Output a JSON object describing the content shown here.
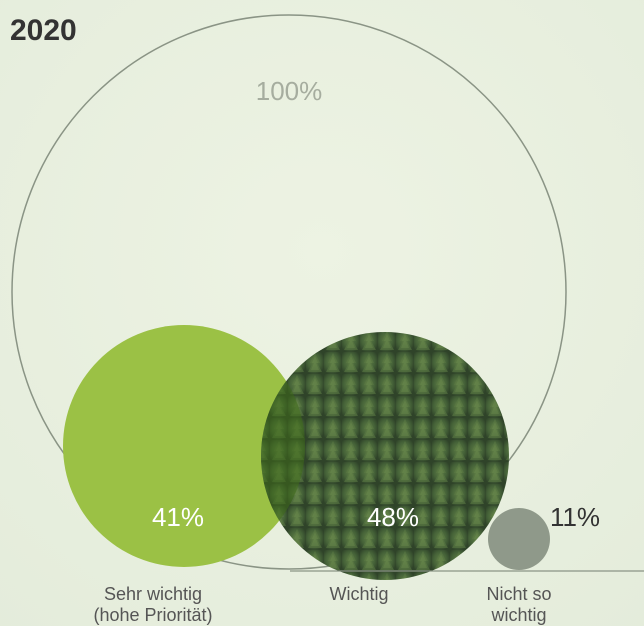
{
  "title": "2020",
  "colors": {
    "background": "#e9f0e0",
    "outline": "#8a9485",
    "total_label": "#a6ad9f",
    "light_green": "#9bc145",
    "dark_green": "#3f5a37",
    "grey": "#8f998a",
    "text_dark": "#333333",
    "text_white": "#ffffff"
  },
  "chart_data": {
    "type": "bubble",
    "total": {
      "value": 100,
      "label": "100%"
    },
    "items": [
      {
        "label_lines": [
          "Sehr wichtig",
          "(hohe Priorität)"
        ],
        "value": 41,
        "value_label": "41%",
        "color": "#9bc145",
        "label_inside": true
      },
      {
        "label_lines": [
          "Wichtig"
        ],
        "value": 48,
        "value_label": "48%",
        "color": "#3f5a37",
        "label_inside": true
      },
      {
        "label_lines": [
          "Nicht so",
          "wichtig"
        ],
        "value": 11,
        "value_label": "11%",
        "color": "#8f998a",
        "label_inside": false
      }
    ]
  }
}
